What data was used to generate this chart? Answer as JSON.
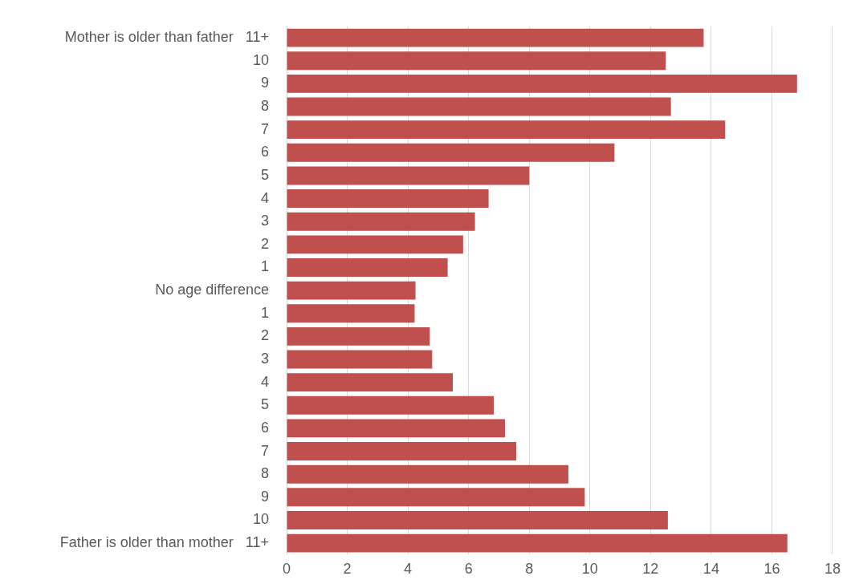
{
  "chart_data": {
    "type": "bar",
    "orientation": "horizontal",
    "categories": [
      "Mother is older than father   11+",
      "10",
      "9",
      "8",
      "7",
      "6",
      "5",
      "4",
      "3",
      "2",
      "1",
      "No age difference",
      "1",
      "2",
      "3",
      "4",
      "5",
      "6",
      "7",
      "8",
      "9",
      "10",
      "Father is older than mother   11+"
    ],
    "values": [
      13.75,
      12.5,
      16.83,
      12.67,
      14.46,
      10.81,
      8.0,
      6.66,
      6.21,
      5.82,
      5.31,
      4.25,
      4.22,
      4.72,
      4.8,
      5.48,
      6.83,
      7.2,
      7.57,
      9.29,
      9.83,
      12.57,
      16.51
    ],
    "color": "#c0504d",
    "xlim": [
      0,
      18
    ],
    "xticks": [
      0,
      2,
      4,
      6,
      8,
      10,
      12,
      14,
      16,
      18
    ],
    "grid": "x",
    "legend": false
  }
}
